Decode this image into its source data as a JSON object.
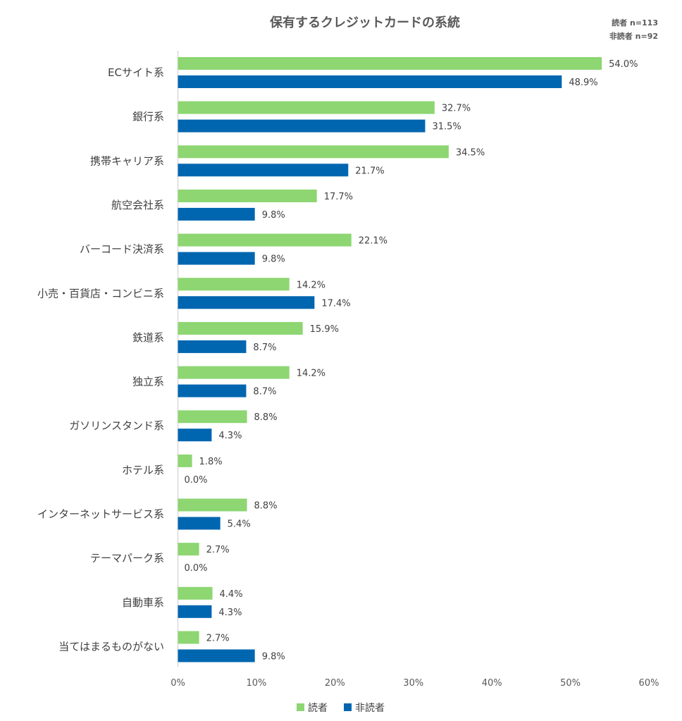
{
  "chart_data": {
    "type": "bar",
    "orientation": "horizontal",
    "title": "保有するクレジットカードの系統",
    "annotations": [
      "読者 n=113",
      "非読者 n=92"
    ],
    "categories": [
      "ECサイト系",
      "銀行系",
      "携帯キャリア系",
      "航空会社系",
      "バーコード決済系",
      "小売・百貨店・コンビニ系",
      "鉄道系",
      "独立系",
      "ガソリンスタンド系",
      "ホテル系",
      "インターネットサービス系",
      "テーマパーク系",
      "自動車系",
      "当てはまるものがない"
    ],
    "series": [
      {
        "name": "読者",
        "color": "#8DD672",
        "values": [
          54.0,
          32.7,
          34.5,
          17.7,
          22.1,
          14.2,
          15.9,
          14.2,
          8.8,
          1.8,
          8.8,
          2.7,
          4.4,
          2.7
        ]
      },
      {
        "name": "非読者",
        "color": "#0066B0",
        "values": [
          48.9,
          31.5,
          21.7,
          9.8,
          9.8,
          17.4,
          8.7,
          8.7,
          4.3,
          0.0,
          5.4,
          0.0,
          4.3,
          9.8
        ]
      }
    ],
    "xlim": [
      0,
      60
    ],
    "xticks": [
      "0%",
      "10%",
      "20%",
      "30%",
      "40%",
      "50%",
      "60%"
    ],
    "xlabel": "",
    "ylabel": "",
    "legend": "bottom",
    "grid": false
  }
}
